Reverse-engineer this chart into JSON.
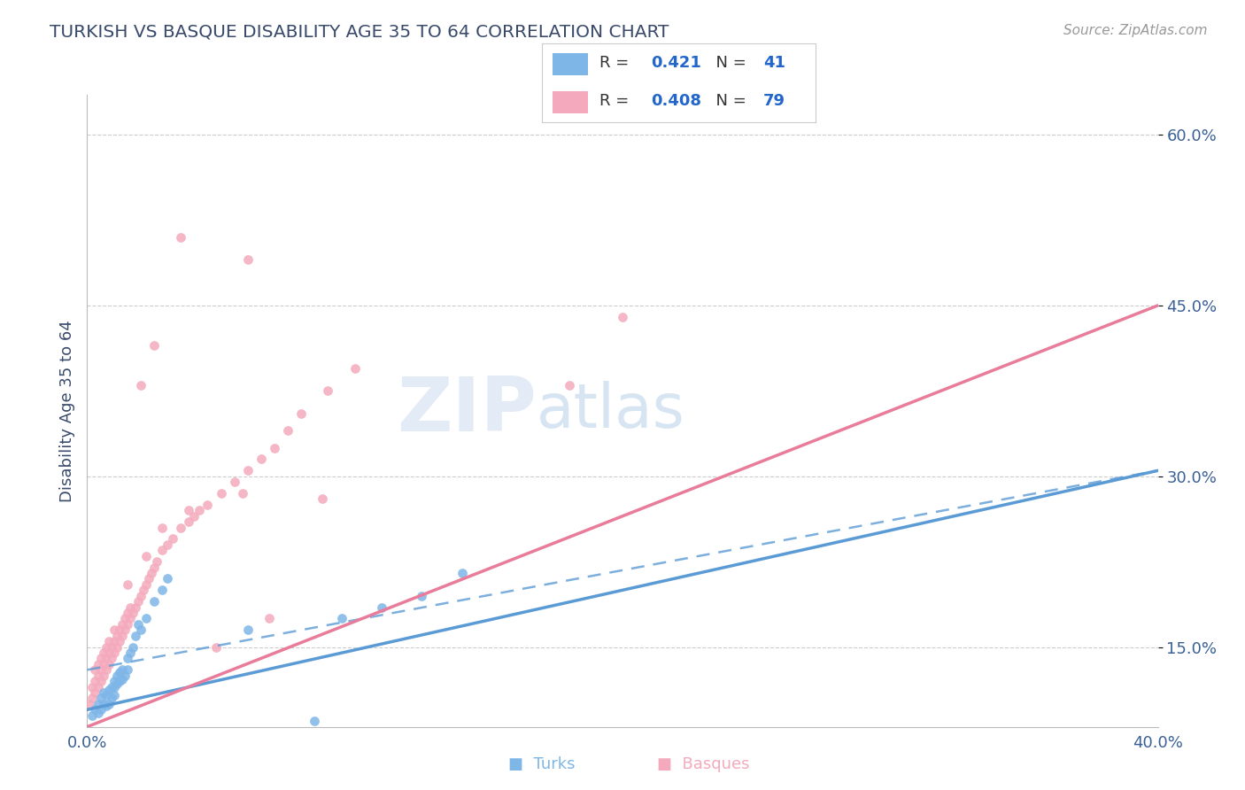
{
  "title": "TURKISH VS BASQUE DISABILITY AGE 35 TO 64 CORRELATION CHART",
  "source": "Source: ZipAtlas.com",
  "ylabel": "Disability Age 35 to 64",
  "xlim": [
    0.0,
    0.4
  ],
  "ylim": [
    0.08,
    0.635
  ],
  "xtick_labels": [
    "0.0%",
    "",
    "",
    "",
    "40.0%"
  ],
  "xtick_vals": [
    0.0,
    0.1,
    0.2,
    0.3,
    0.4
  ],
  "ytick_labels": [
    "15.0%",
    "30.0%",
    "45.0%",
    "60.0%"
  ],
  "ytick_vals": [
    0.15,
    0.3,
    0.45,
    0.6
  ],
  "turks_color": "#7EB6E8",
  "basques_color": "#F4AABC",
  "turks_line_color": "#5B9BD5",
  "basques_line_color": "#E87C9A",
  "turks_R": 0.421,
  "turks_N": 41,
  "basques_R": 0.408,
  "basques_N": 79,
  "watermark_zip": "ZIP",
  "watermark_atlas": "atlas",
  "title_color": "#3a4a6b",
  "axis_label_color": "#3a4a6b",
  "tick_color": "#3a6096",
  "legend_R_color": "#2266CC",
  "turks_scatter_x": [
    0.002,
    0.003,
    0.004,
    0.004,
    0.005,
    0.005,
    0.006,
    0.006,
    0.007,
    0.007,
    0.008,
    0.008,
    0.009,
    0.009,
    0.01,
    0.01,
    0.01,
    0.011,
    0.011,
    0.012,
    0.012,
    0.013,
    0.013,
    0.014,
    0.015,
    0.015,
    0.016,
    0.017,
    0.018,
    0.019,
    0.02,
    0.022,
    0.025,
    0.028,
    0.03,
    0.06,
    0.085,
    0.095,
    0.11,
    0.125,
    0.14
  ],
  "turks_scatter_y": [
    0.09,
    0.095,
    0.092,
    0.1,
    0.095,
    0.105,
    0.1,
    0.11,
    0.098,
    0.108,
    0.1,
    0.112,
    0.105,
    0.115,
    0.108,
    0.115,
    0.12,
    0.118,
    0.125,
    0.12,
    0.128,
    0.122,
    0.13,
    0.125,
    0.13,
    0.14,
    0.145,
    0.15,
    0.16,
    0.17,
    0.165,
    0.175,
    0.19,
    0.2,
    0.21,
    0.165,
    0.085,
    0.175,
    0.185,
    0.195,
    0.215
  ],
  "basques_scatter_x": [
    0.001,
    0.002,
    0.002,
    0.003,
    0.003,
    0.003,
    0.004,
    0.004,
    0.004,
    0.005,
    0.005,
    0.005,
    0.006,
    0.006,
    0.006,
    0.007,
    0.007,
    0.007,
    0.008,
    0.008,
    0.008,
    0.009,
    0.009,
    0.01,
    0.01,
    0.01,
    0.011,
    0.011,
    0.012,
    0.012,
    0.013,
    0.013,
    0.014,
    0.014,
    0.015,
    0.015,
    0.016,
    0.016,
    0.017,
    0.018,
    0.019,
    0.02,
    0.021,
    0.022,
    0.023,
    0.024,
    0.025,
    0.026,
    0.028,
    0.03,
    0.032,
    0.035,
    0.038,
    0.04,
    0.042,
    0.045,
    0.05,
    0.055,
    0.06,
    0.065,
    0.07,
    0.075,
    0.08,
    0.09,
    0.1,
    0.015,
    0.022,
    0.028,
    0.038,
    0.048,
    0.058,
    0.068,
    0.088,
    0.02,
    0.025,
    0.035,
    0.06,
    0.18,
    0.2
  ],
  "basques_scatter_y": [
    0.1,
    0.105,
    0.115,
    0.11,
    0.12,
    0.13,
    0.115,
    0.125,
    0.135,
    0.12,
    0.13,
    0.14,
    0.125,
    0.135,
    0.145,
    0.13,
    0.14,
    0.15,
    0.135,
    0.145,
    0.155,
    0.14,
    0.15,
    0.145,
    0.155,
    0.165,
    0.15,
    0.16,
    0.155,
    0.165,
    0.16,
    0.17,
    0.165,
    0.175,
    0.17,
    0.18,
    0.175,
    0.185,
    0.18,
    0.185,
    0.19,
    0.195,
    0.2,
    0.205,
    0.21,
    0.215,
    0.22,
    0.225,
    0.235,
    0.24,
    0.245,
    0.255,
    0.26,
    0.265,
    0.27,
    0.275,
    0.285,
    0.295,
    0.305,
    0.315,
    0.325,
    0.34,
    0.355,
    0.375,
    0.395,
    0.205,
    0.23,
    0.255,
    0.27,
    0.15,
    0.285,
    0.175,
    0.28,
    0.38,
    0.415,
    0.51,
    0.49,
    0.38,
    0.44
  ],
  "blue_line": {
    "x0": 0.0,
    "x1": 0.4,
    "y0": 0.095,
    "y1": 0.305
  },
  "pink_line": {
    "x0": 0.0,
    "x1": 0.4,
    "y0": 0.08,
    "y1": 0.45
  },
  "dashed_line": {
    "x0": 0.0,
    "x1": 0.4,
    "y0": 0.13,
    "y1": 0.305
  }
}
